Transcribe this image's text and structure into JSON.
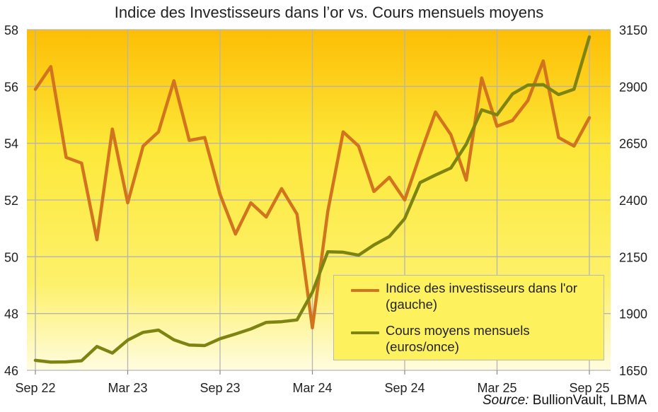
{
  "chart_data": {
    "type": "line",
    "title": "Indice des Investisseurs dans l’or vs. Cours mensuels moyens",
    "source_label": "Source:",
    "source_text": " BullionVault, LBMA",
    "x_tick_labels": [
      "Sep 22",
      "Mar 23",
      "Sep 23",
      "Mar 24",
      "Sep 24",
      "Mar 25",
      "Sep 25"
    ],
    "y_left": {
      "ylim": [
        46,
        58
      ],
      "ticks": [
        46,
        48,
        50,
        52,
        54,
        56,
        58
      ]
    },
    "y_right": {
      "ylim": [
        1650,
        3150
      ],
      "ticks": [
        1650,
        1900,
        2150,
        2400,
        2650,
        2900,
        3150
      ]
    },
    "grid": true,
    "legend_position": "bottom-right",
    "x": [
      "Sep 22",
      "Oct 22",
      "Nov 22",
      "Dec 22",
      "Jan 23",
      "Feb 23",
      "Mar 23",
      "Apr 23",
      "May 23",
      "Jun 23",
      "Jul 23",
      "Aug 23",
      "Sep 23",
      "Oct 23",
      "Nov 23",
      "Dec 23",
      "Jan 24",
      "Feb 24",
      "Mar 24",
      "Apr 24",
      "May 24",
      "Jun 24",
      "Jul 24",
      "Aug 24",
      "Sep 24",
      "Oct 24",
      "Nov 24",
      "Dec 24",
      "Jan 25",
      "Feb 25",
      "Mar 25",
      "Apr 25",
      "May 25",
      "Jun 25",
      "Jul 25",
      "Aug 25",
      "Sep 25"
    ],
    "series": [
      {
        "name": "Indice des investisseurs dans l'or (gauche)",
        "legend_line1": "Indice des investisseurs dans l'or",
        "legend_line2": "(gauche)",
        "axis": "left",
        "color": "#d2731e",
        "values": [
          55.9,
          56.7,
          53.5,
          53.3,
          50.6,
          54.5,
          51.9,
          53.9,
          54.4,
          56.2,
          54.1,
          54.2,
          52.2,
          50.8,
          51.9,
          51.4,
          52.4,
          51.5,
          47.5,
          51.6,
          54.4,
          53.9,
          52.3,
          52.8,
          52.0,
          53.6,
          55.1,
          54.3,
          52.7,
          56.3,
          54.6,
          54.8,
          55.5,
          56.9,
          54.2,
          53.9,
          54.9
        ]
      },
      {
        "name": "Cours moyens mensuels (euros/once)",
        "legend_line1": "Cours moyens mensuels",
        "legend_line2": "(euros/once)",
        "axis": "right",
        "color": "#7e8412",
        "values": [
          1694,
          1686,
          1687,
          1692,
          1755,
          1726,
          1783,
          1817,
          1827,
          1784,
          1761,
          1759,
          1789,
          1810,
          1832,
          1861,
          1864,
          1872,
          1994,
          2172,
          2170,
          2157,
          2202,
          2239,
          2318,
          2477,
          2510,
          2541,
          2646,
          2797,
          2775,
          2867,
          2906,
          2908,
          2864,
          2888,
          3118
        ]
      }
    ]
  }
}
